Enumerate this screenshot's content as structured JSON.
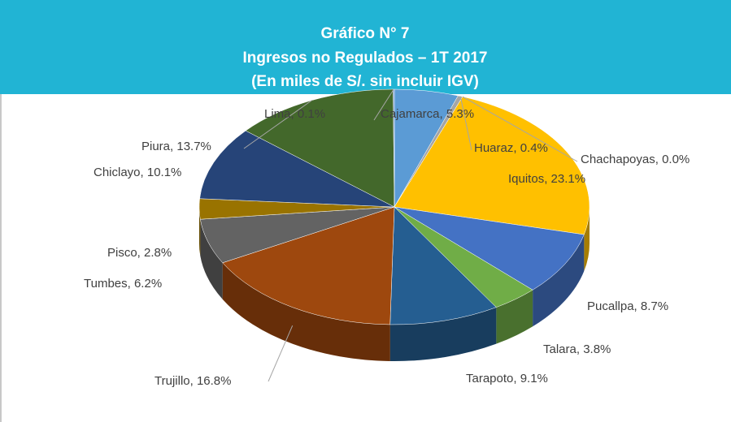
{
  "chart_data": {
    "type": "pie",
    "title": "Gráfico N° 7",
    "subtitle": [
      "Ingresos no Regulados – 1T 2017",
      "(En miles de S/.  sin incluir IGV)"
    ],
    "values": [
      5.3,
      0.4,
      0.0,
      23.1,
      8.7,
      3.8,
      9.1,
      16.8,
      6.2,
      2.8,
      10.1,
      13.7,
      0.1
    ],
    "value_labels": [
      "Cajamarca, 5.3%",
      "Huaraz, 0.4%",
      "Chachapoyas, 0.0%",
      "Iquitos, 23.1%",
      "Pucallpa, 8.7%",
      "Talara, 3.8%",
      "Tarapoto, 9.1%",
      "Trujillo, 16.8%",
      "Tumbes, 6.2%",
      "Pisco, 2.8%",
      "Chiclayo, 10.1%",
      "Piura, 13.7%",
      "Lima, 0.1%"
    ],
    "colors": [
      "#5b9bd5",
      "#a5a5a5",
      "#7f7f7f",
      "#ffc000",
      "#4472c4",
      "#70ad47",
      "#255e91",
      "#9e480e",
      "#636363",
      "#997300",
      "#264478",
      "#43682b",
      "#698ed0"
    ]
  }
}
